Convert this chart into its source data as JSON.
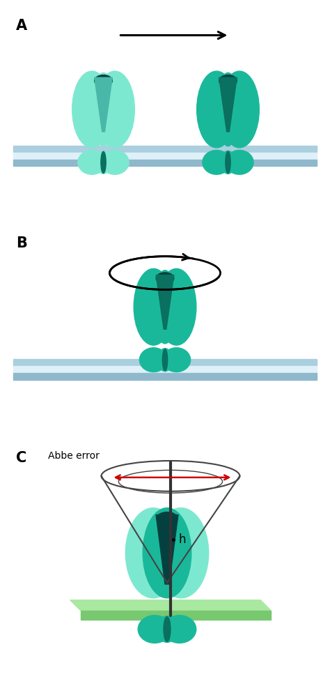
{
  "bg_color": "#ffffff",
  "label_A": "A",
  "label_B": "B",
  "label_C": "C",
  "abbe_error_text": "Abbe error",
  "h_text": "h",
  "protein_light_color": "#7de8d0",
  "protein_medium_color": "#1ab89a",
  "protein_dark_color": "#0a7060",
  "protein_darker_color": "#054040",
  "membrane_top": "#aacfdf",
  "membrane_mid": "#dff0f8",
  "membrane_bot": "#90b8cc",
  "red_arrow_color": "#cc0000",
  "cone_color": "#444444",
  "plate_top_color": "#a8e8a0",
  "plate_side_color": "#78c870",
  "axis_color": "#333333"
}
